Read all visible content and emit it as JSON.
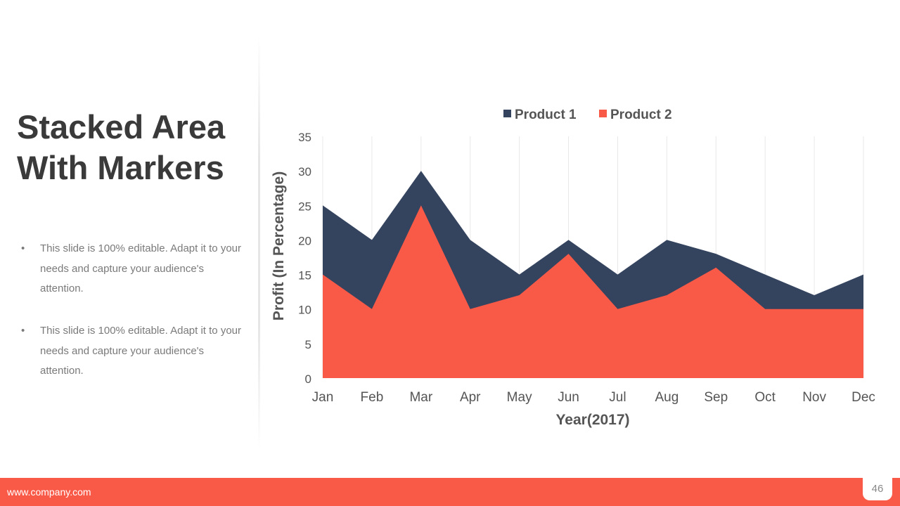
{
  "slide": {
    "title": "Stacked Area With Markers",
    "bullets": [
      "This slide is 100% editable. Adapt it to your needs and capture your audience's attention.",
      "This slide is 100% editable. Adapt it to your needs and capture your audience's attention."
    ],
    "footer_url": "www.company.com",
    "page_number": "46"
  },
  "colors": {
    "product1": "#34435e",
    "product2": "#f95a48"
  },
  "chart_data": {
    "type": "area",
    "stacked": true,
    "categories": [
      "Jan",
      "Feb",
      "Mar",
      "Apr",
      "May",
      "Jun",
      "Jul",
      "Aug",
      "Sep",
      "Oct",
      "Nov",
      "Dec"
    ],
    "series": [
      {
        "name": "Product 1",
        "values": [
          10,
          10,
          5,
          10,
          3,
          2,
          5,
          8,
          2,
          5,
          2,
          5
        ]
      },
      {
        "name": "Product 2",
        "values": [
          15,
          10,
          25,
          10,
          12,
          18,
          10,
          12,
          16,
          10,
          10,
          10
        ]
      }
    ],
    "xlabel": "Year(2017)",
    "ylabel": "Profit (In Percentage)",
    "ylim": [
      0,
      35
    ],
    "yticks": [
      0,
      5,
      10,
      15,
      20,
      25,
      30,
      35
    ],
    "grid": "vertical",
    "legend": "top"
  }
}
